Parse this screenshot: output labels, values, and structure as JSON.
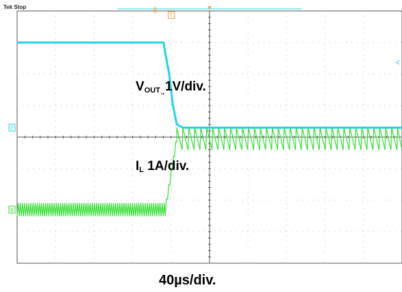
{
  "status_text": "Tek Stop",
  "chart_data": {
    "type": "line",
    "title": "",
    "time_scale_label": "40µs/div.",
    "x_divisions": 10,
    "y_divisions": 8,
    "grid": true,
    "colors": {
      "vout": "#22d3e6",
      "il": "#33dd33",
      "grid": "#bbbbbb",
      "axis": "#555555",
      "cursor": "#e8a23a"
    },
    "markers": [
      "T",
      "2",
      "4"
    ],
    "series": [
      {
        "name": "VOUT",
        "label_main": "V",
        "label_sub": "OUT",
        "label_sep": ",,",
        "label_scale": "1V/div.",
        "units": "div",
        "points": [
          [
            0,
            7.0
          ],
          [
            3.8,
            7.0
          ],
          [
            3.95,
            6.0
          ],
          [
            4.05,
            5.0
          ],
          [
            4.15,
            4.4
          ],
          [
            4.3,
            4.3
          ],
          [
            10,
            4.3
          ]
        ]
      },
      {
        "name": "IL",
        "label_main": "I",
        "label_sub": "L",
        "label_scale": "1A/div.",
        "units": "div",
        "pre_level_div": 1.7,
        "pre_ripple_div": 0.2,
        "post_level_div": 3.95,
        "post_ripple_div": 0.35,
        "step_time_div": 3.85,
        "ramp_end_div": 4.15
      }
    ]
  }
}
